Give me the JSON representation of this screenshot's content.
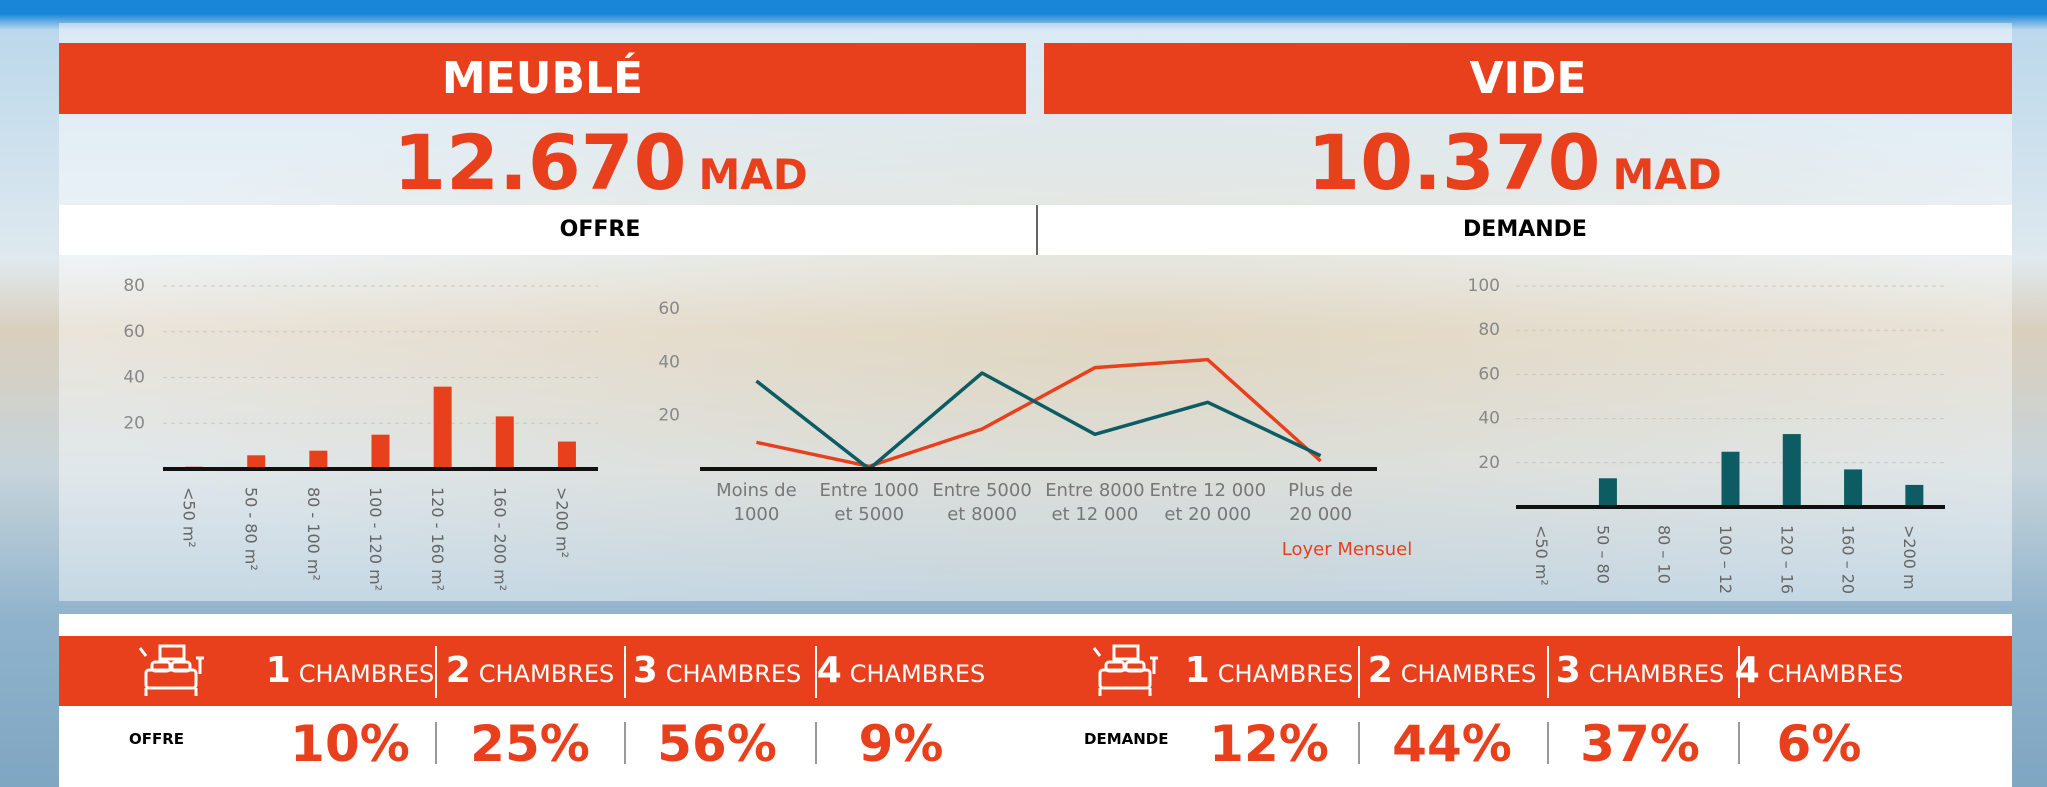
{
  "panels": [
    {
      "title": "MEUBLÉ",
      "amount": "12.670",
      "unit": "MAD",
      "label": "OFFRE"
    },
    {
      "title": "VIDE",
      "amount": "10.370",
      "unit": "MAD",
      "label": "DEMANDE"
    }
  ],
  "chart_data": [
    {
      "type": "bar",
      "categories": [
        "<50 m²",
        "50 - 80 m²",
        "80 - 100 m²",
        "100 - 120 m²",
        "120 - 160 m²",
        "160 - 200 m²",
        ">200 m²"
      ],
      "values": [
        1,
        6,
        8,
        15,
        36,
        23,
        12
      ],
      "color": "#e8401c",
      "ylim": [
        0,
        80
      ],
      "yticks": [
        20,
        40,
        60,
        80
      ],
      "grid": true
    },
    {
      "type": "line",
      "categories": [
        [
          "Moins de",
          "1000"
        ],
        [
          "Entre 1000",
          "et 5000"
        ],
        [
          "Entre 5000",
          "et 8000"
        ],
        [
          "Entre 8000",
          "et 12 000"
        ],
        [
          "Entre 12 000",
          "et 20 000"
        ],
        [
          "Plus de",
          "20 000"
        ]
      ],
      "x_label": "Loyer Mensuel",
      "series": [
        {
          "color": "#e8401c",
          "values": [
            10,
            1,
            15,
            38,
            41,
            3
          ]
        },
        {
          "color": "#0d5c63",
          "values": [
            33,
            0,
            36,
            13,
            25,
            5
          ]
        }
      ],
      "ylim": [
        0,
        60
      ],
      "yticks": [
        20,
        40,
        60
      ],
      "grid": false
    },
    {
      "type": "bar",
      "categories": [
        "<50 m²",
        "50 – 80",
        "80 – 10",
        "100 – 12",
        "120 – 16",
        "160 – 20",
        ">200 m"
      ],
      "values": [
        0.5,
        13,
        0.5,
        25,
        33,
        17,
        10
      ],
      "color": "#0d5c63",
      "ylim": [
        0,
        100
      ],
      "yticks": [
        20,
        40,
        60,
        80,
        100
      ],
      "grid": true
    }
  ],
  "rooms": [
    {
      "label": "OFFRE",
      "items": [
        {
          "count": "1",
          "unit": "CHAMBRES",
          "share": "10%"
        },
        {
          "count": "2",
          "unit": "CHAMBRES",
          "share": "25%"
        },
        {
          "count": "3",
          "unit": "CHAMBRES",
          "share": "56%"
        },
        {
          "count": "4",
          "unit": "CHAMBRES",
          "share": "9%"
        }
      ]
    },
    {
      "label": "DEMANDE",
      "items": [
        {
          "count": "1",
          "unit": "CHAMBRES",
          "share": "12%"
        },
        {
          "count": "2",
          "unit": "CHAMBRES",
          "share": "44%"
        },
        {
          "count": "3",
          "unit": "CHAMBRES",
          "share": "37%"
        },
        {
          "count": "4",
          "unit": "CHAMBRES",
          "share": "6%"
        }
      ]
    }
  ]
}
